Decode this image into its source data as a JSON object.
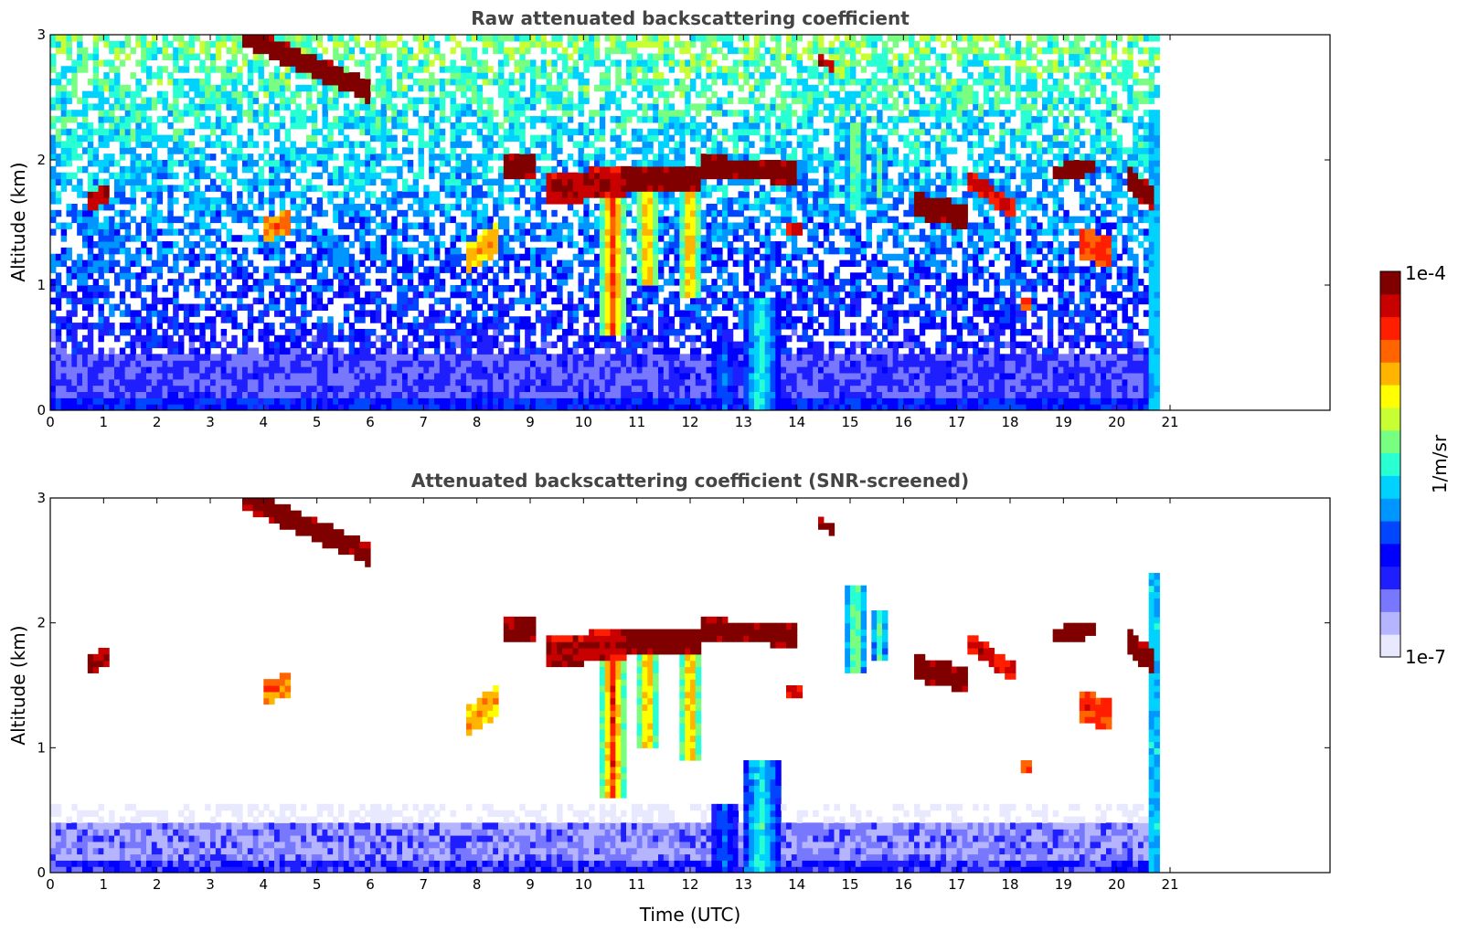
{
  "colors": {
    "background": "#ffffff",
    "title": "#444444",
    "axis": "#000000",
    "colormap": [
      "#e8e8ff",
      "#b4b4ff",
      "#7878ff",
      "#1e1eff",
      "#0000ff",
      "#0046ff",
      "#0096ff",
      "#00d2ff",
      "#28ffd2",
      "#78ff82",
      "#c8ff32",
      "#ffff00",
      "#ffb400",
      "#ff6400",
      "#ff1e00",
      "#c80000",
      "#800000"
    ]
  },
  "colorbar": {
    "label": "1/m/sr",
    "top_tick": "1e-4",
    "bottom_tick": "1e-7",
    "vmin": 1e-07,
    "vmax": 0.0001,
    "scale": "log"
  },
  "chart_data": [
    {
      "type": "heatmap",
      "title": "Raw attenuated backscattering coefficient",
      "xlabel": "",
      "ylabel": "Altitude (km)",
      "xlim": [
        0,
        24
      ],
      "ylim": [
        0,
        3
      ],
      "xticks": [
        "0",
        "1",
        "2",
        "3",
        "4",
        "5",
        "6",
        "7",
        "8",
        "9",
        "10",
        "11",
        "12",
        "13",
        "14",
        "15",
        "16",
        "17",
        "18",
        "19",
        "20",
        "21"
      ],
      "yticks": [
        "0",
        "1",
        "2",
        "3"
      ],
      "data_extent_hours": [
        0,
        20.8
      ],
      "screened": false,
      "features": [
        {
          "kind": "cloud",
          "t0": 3.6,
          "t1": 6.0,
          "alt_start": 3.0,
          "alt_end": 2.55,
          "thickness": 0.18,
          "level": 1.0
        },
        {
          "kind": "cloud",
          "t0": 0.7,
          "t1": 1.15,
          "alt_start": 1.65,
          "alt_end": 1.75,
          "thickness": 0.15,
          "level": 0.95
        },
        {
          "kind": "cloud",
          "t0": 8.5,
          "t1": 9.1,
          "alt_start": 1.95,
          "alt_end": 1.95,
          "thickness": 0.15,
          "level": 1.0
        },
        {
          "kind": "cloud",
          "t0": 9.3,
          "t1": 10.8,
          "alt_start": 1.75,
          "alt_end": 1.85,
          "thickness": 0.25,
          "level": 0.95
        },
        {
          "kind": "cloud",
          "t0": 10.8,
          "t1": 12.2,
          "alt_start": 1.85,
          "alt_end": 1.85,
          "thickness": 0.2,
          "level": 1.0
        },
        {
          "kind": "cloud",
          "t0": 12.2,
          "t1": 14.0,
          "alt_start": 1.95,
          "alt_end": 1.9,
          "thickness": 0.18,
          "level": 1.0
        },
        {
          "kind": "cloud",
          "t0": 16.2,
          "t1": 17.2,
          "alt_start": 1.65,
          "alt_end": 1.55,
          "thickness": 0.2,
          "level": 1.0
        },
        {
          "kind": "cloud",
          "t0": 18.8,
          "t1": 19.6,
          "alt_start": 1.9,
          "alt_end": 1.95,
          "thickness": 0.12,
          "level": 1.0
        },
        {
          "kind": "cloud",
          "t0": 20.2,
          "t1": 20.7,
          "alt_start": 1.85,
          "alt_end": 1.7,
          "thickness": 0.2,
          "level": 1.0
        },
        {
          "kind": "cloud",
          "t0": 17.2,
          "t1": 18.1,
          "alt_start": 1.85,
          "alt_end": 1.6,
          "thickness": 0.15,
          "level": 0.9
        },
        {
          "kind": "cloud",
          "t0": 19.3,
          "t1": 19.9,
          "alt_start": 1.35,
          "alt_end": 1.25,
          "thickness": 0.25,
          "level": 0.85
        },
        {
          "kind": "cloud",
          "t0": 14.4,
          "t1": 14.7,
          "alt_start": 2.8,
          "alt_end": 2.75,
          "thickness": 0.08,
          "level": 0.95
        },
        {
          "kind": "cloud",
          "t0": 4.0,
          "t1": 4.5,
          "alt_start": 1.45,
          "alt_end": 1.5,
          "thickness": 0.2,
          "level": 0.8
        },
        {
          "kind": "cloud",
          "t0": 7.8,
          "t1": 8.4,
          "alt_start": 1.2,
          "alt_end": 1.4,
          "thickness": 0.25,
          "level": 0.75
        },
        {
          "kind": "cloud",
          "t0": 13.8,
          "t1": 14.1,
          "alt_start": 1.45,
          "alt_end": 1.45,
          "thickness": 0.1,
          "level": 0.9
        },
        {
          "kind": "cloud",
          "t0": 18.2,
          "t1": 18.4,
          "alt_start": 0.85,
          "alt_end": 0.85,
          "thickness": 0.1,
          "level": 0.85
        },
        {
          "kind": "virga",
          "t0": 10.3,
          "t1": 10.8,
          "alt_top": 1.85,
          "alt_bottom": 0.6,
          "level": 0.85
        },
        {
          "kind": "virga",
          "t0": 11.0,
          "t1": 11.4,
          "alt_top": 1.8,
          "alt_bottom": 1.0,
          "level": 0.8
        },
        {
          "kind": "virga",
          "t0": 11.8,
          "t1": 12.2,
          "alt_top": 1.75,
          "alt_bottom": 0.9,
          "level": 0.8
        },
        {
          "kind": "virga",
          "t0": 14.9,
          "t1": 15.3,
          "alt_top": 2.3,
          "alt_bottom": 1.6,
          "level": 0.6
        },
        {
          "kind": "virga",
          "t0": 15.4,
          "t1": 15.7,
          "alt_top": 2.1,
          "alt_bottom": 1.7,
          "level": 0.55
        },
        {
          "kind": "aerosol",
          "t0": 12.4,
          "t1": 12.9,
          "alt_top": 0.55,
          "alt_bottom": 0.0,
          "level": 0.35
        },
        {
          "kind": "aerosol",
          "t0": 13.0,
          "t1": 13.65,
          "alt_top": 0.9,
          "alt_bottom": 0.0,
          "level": 0.5
        },
        {
          "kind": "column",
          "t0": 20.6,
          "t1": 20.8,
          "alt_top": 2.4,
          "alt_bottom": 0.0,
          "level": 0.55
        }
      ]
    },
    {
      "type": "heatmap",
      "title": "Attenuated backscattering coefficient (SNR-screened)",
      "xlabel": "Time (UTC)",
      "ylabel": "Altitude (km)",
      "xlim": [
        0,
        24
      ],
      "ylim": [
        0,
        3
      ],
      "xticks": [
        "0",
        "1",
        "2",
        "3",
        "4",
        "5",
        "6",
        "7",
        "8",
        "9",
        "10",
        "11",
        "12",
        "13",
        "14",
        "15",
        "16",
        "17",
        "18",
        "19",
        "20",
        "21"
      ],
      "yticks": [
        "0",
        "1",
        "2",
        "3"
      ],
      "data_extent_hours": [
        0,
        20.8
      ],
      "screened": true
    }
  ]
}
